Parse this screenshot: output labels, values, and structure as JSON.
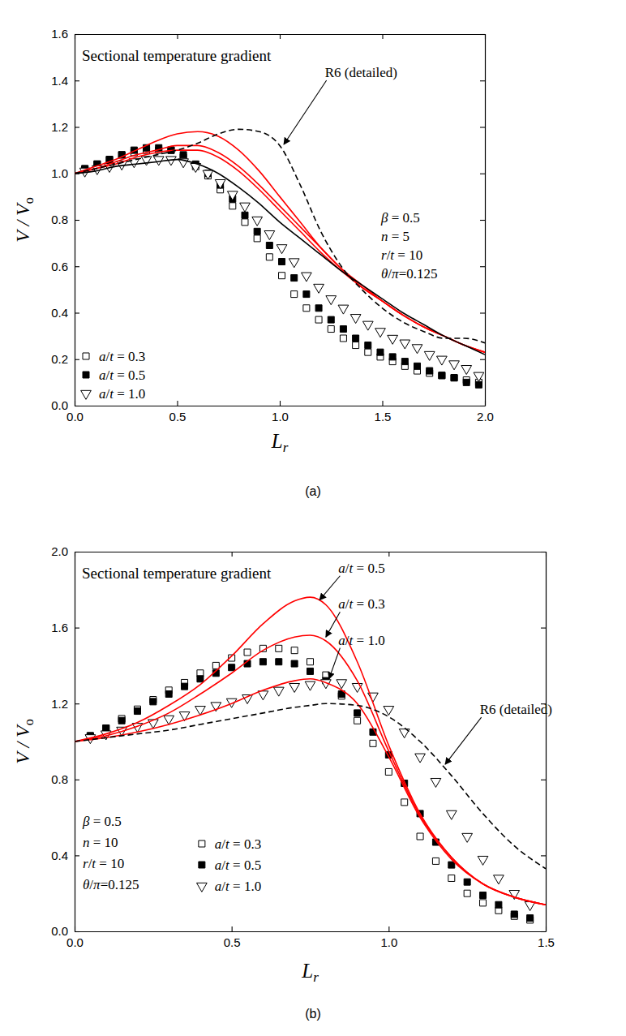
{
  "chart_data": [
    {
      "type": "line",
      "title": "Sectional temperature gradient",
      "xlabel": [
        "L",
        "r"
      ],
      "ylabel": [
        "V / V",
        "o"
      ],
      "caption": "(a)",
      "xlim": [
        0,
        2
      ],
      "ylim": [
        0,
        1.6
      ],
      "xticks": [
        {
          "value": 0,
          "label": "0.0"
        },
        0.5,
        {
          "value": 1,
          "label": "1.0"
        },
        1.5,
        {
          "value": 2,
          "label": "2.0"
        }
      ],
      "yticks": [
        {
          "value": 0,
          "label": "0.0"
        },
        0.2,
        0.4,
        0.6,
        0.8,
        {
          "value": 1,
          "label": "1.0"
        },
        1.2,
        1.4,
        1.6
      ],
      "legend": "lower left",
      "params": [
        "β = 0.5",
        "n = 5",
        "r/t = 10",
        "θ/π=0.125"
      ],
      "annotations": [
        {
          "text": "R6 (detailed)",
          "x": 1.22,
          "y": 1.415,
          "arrow_x": 1.02,
          "arrow_y": 1.125
        }
      ],
      "series": [
        {
          "name": "a/t = 0.3",
          "type": "scatter",
          "marker": "open-square",
          "color": "#000000",
          "x": [
            0.05,
            0.11,
            0.17,
            0.23,
            0.29,
            0.35,
            0.41,
            0.47,
            0.53,
            0.59,
            0.65,
            0.71,
            0.77,
            0.83,
            0.89,
            0.95,
            1.01,
            1.07,
            1.13,
            1.19,
            1.25,
            1.31,
            1.37,
            1.43,
            1.49,
            1.55,
            1.61,
            1.67,
            1.73,
            1.79,
            1.85,
            1.91,
            1.97
          ],
          "values": [
            1.02,
            1.04,
            1.06,
            1.08,
            1.09,
            1.1,
            1.1,
            1.1,
            1.07,
            1.03,
            0.99,
            0.93,
            0.86,
            0.79,
            0.72,
            0.64,
            0.56,
            0.48,
            0.42,
            0.37,
            0.33,
            0.29,
            0.26,
            0.23,
            0.21,
            0.19,
            0.17,
            0.15,
            0.14,
            0.13,
            0.12,
            0.11,
            0.1
          ]
        },
        {
          "name": "a/t = 0.5",
          "type": "scatter",
          "marker": "filled-square",
          "color": "#000000",
          "x": [
            0.05,
            0.11,
            0.17,
            0.23,
            0.29,
            0.35,
            0.41,
            0.47,
            0.53,
            0.59,
            0.65,
            0.71,
            0.77,
            0.83,
            0.89,
            0.95,
            1.01,
            1.07,
            1.13,
            1.19,
            1.25,
            1.31,
            1.37,
            1.43,
            1.49,
            1.55,
            1.61,
            1.67,
            1.73,
            1.79,
            1.85,
            1.91,
            1.97
          ],
          "values": [
            1.02,
            1.04,
            1.06,
            1.08,
            1.1,
            1.11,
            1.11,
            1.1,
            1.08,
            1.04,
            1.0,
            0.95,
            0.89,
            0.82,
            0.75,
            0.69,
            0.62,
            0.55,
            0.48,
            0.42,
            0.37,
            0.33,
            0.29,
            0.26,
            0.23,
            0.21,
            0.19,
            0.17,
            0.15,
            0.13,
            0.12,
            0.1,
            0.09
          ]
        },
        {
          "name": "a/t = 1.0",
          "type": "scatter",
          "marker": "open-triangle-down",
          "color": "#000000",
          "x": [
            0.05,
            0.11,
            0.17,
            0.23,
            0.29,
            0.35,
            0.41,
            0.47,
            0.53,
            0.59,
            0.65,
            0.71,
            0.77,
            0.83,
            0.89,
            0.95,
            1.01,
            1.07,
            1.13,
            1.19,
            1.25,
            1.31,
            1.37,
            1.43,
            1.49,
            1.55,
            1.61,
            1.67,
            1.73,
            1.79,
            1.85,
            1.91,
            1.97
          ],
          "values": [
            1.01,
            1.02,
            1.03,
            1.04,
            1.05,
            1.06,
            1.06,
            1.06,
            1.05,
            1.03,
            1.0,
            0.96,
            0.91,
            0.86,
            0.8,
            0.74,
            0.68,
            0.62,
            0.56,
            0.51,
            0.46,
            0.42,
            0.38,
            0.35,
            0.32,
            0.29,
            0.27,
            0.25,
            0.22,
            0.2,
            0.18,
            0.16,
            0.13
          ]
        },
        {
          "type": "line",
          "line_style": "solid",
          "color": "#ff0000",
          "x": [
            0,
            0.1,
            0.2,
            0.3,
            0.4,
            0.5,
            0.6,
            0.7,
            0.8,
            0.9,
            1.0,
            1.1,
            1.2,
            1.3,
            1.4,
            1.5,
            1.6,
            1.7,
            1.8,
            1.9,
            2.0
          ],
          "values": [
            1.0,
            1.03,
            1.06,
            1.1,
            1.14,
            1.17,
            1.18,
            1.16,
            1.1,
            1.01,
            0.9,
            0.79,
            0.68,
            0.59,
            0.51,
            0.45,
            0.39,
            0.34,
            0.3,
            0.26,
            0.23
          ]
        },
        {
          "type": "line",
          "line_style": "solid",
          "color": "#ff0000",
          "x": [
            0,
            0.1,
            0.2,
            0.3,
            0.4,
            0.5,
            0.6,
            0.7,
            0.8,
            0.9,
            1.0,
            1.1,
            1.2,
            1.3,
            1.4,
            1.5,
            1.6,
            1.7,
            1.8,
            1.9,
            2.0
          ],
          "values": [
            1.0,
            1.02,
            1.05,
            1.08,
            1.1,
            1.12,
            1.12,
            1.09,
            1.03,
            0.95,
            0.86,
            0.77,
            0.68,
            0.59,
            0.52,
            0.45,
            0.39,
            0.34,
            0.3,
            0.26,
            0.23
          ]
        },
        {
          "type": "line",
          "line_style": "solid",
          "color": "#ff0000",
          "x": [
            0,
            0.1,
            0.2,
            0.3,
            0.4,
            0.5,
            0.6,
            0.7,
            0.8,
            0.9,
            1.0,
            1.1,
            1.2,
            1.3,
            1.4,
            1.5,
            1.6,
            1.7,
            1.8,
            1.9,
            2.0
          ],
          "values": [
            1.0,
            1.02,
            1.04,
            1.07,
            1.09,
            1.1,
            1.1,
            1.07,
            1.01,
            0.93,
            0.84,
            0.75,
            0.66,
            0.58,
            0.51,
            0.45,
            0.39,
            0.34,
            0.3,
            0.26,
            0.23
          ]
        },
        {
          "type": "line",
          "line_style": "solid",
          "color": "#000000",
          "x": [
            0,
            0.1,
            0.2,
            0.3,
            0.4,
            0.5,
            0.6,
            0.7,
            0.8,
            0.9,
            1.0,
            1.1,
            1.2,
            1.3,
            1.4,
            1.5,
            1.6,
            1.7,
            1.8,
            1.9,
            2.0
          ],
          "values": [
            1.0,
            1.01,
            1.03,
            1.04,
            1.05,
            1.06,
            1.04,
            1.0,
            0.94,
            0.87,
            0.79,
            0.72,
            0.65,
            0.58,
            0.52,
            0.46,
            0.4,
            0.35,
            0.3,
            0.26,
            0.22
          ]
        },
        {
          "type": "line",
          "line_style": "dashed",
          "color": "#000000",
          "x": [
            0,
            0.1,
            0.2,
            0.3,
            0.4,
            0.5,
            0.6,
            0.7,
            0.8,
            0.9,
            1.0,
            1.1,
            1.2,
            1.3,
            1.4,
            1.5,
            1.6,
            1.7,
            1.8,
            1.9,
            2.0
          ],
          "values": [
            1.0,
            1.02,
            1.04,
            1.06,
            1.08,
            1.1,
            1.13,
            1.17,
            1.19,
            1.18,
            1.12,
            0.95,
            0.75,
            0.6,
            0.5,
            0.42,
            0.36,
            0.32,
            0.29,
            0.29,
            0.27
          ]
        }
      ]
    },
    {
      "type": "line",
      "title": "Sectional temperature gradient",
      "xlabel": [
        "L",
        "r"
      ],
      "ylabel": [
        "V / V",
        "o"
      ],
      "caption": "(b)",
      "xlim": [
        0,
        1.5
      ],
      "ylim": [
        0,
        2
      ],
      "xticks": [
        {
          "value": 0,
          "label": "0.0"
        },
        0.5,
        {
          "value": 1,
          "label": "1.0"
        },
        1.5
      ],
      "yticks": [
        {
          "value": 0,
          "label": "0.0"
        },
        0.4,
        0.8,
        1.2,
        1.6,
        {
          "value": 2,
          "label": "2.0"
        }
      ],
      "legend": "lower center",
      "params": [
        "β = 0.5",
        "n = 10",
        "r/t = 10",
        "θ/π=0.125"
      ],
      "annotations": [
        {
          "text": "a/t = 0.5",
          "x": 0.84,
          "y": 1.89,
          "arrow_x": 0.78,
          "arrow_y": 1.745
        },
        {
          "text": "a/t = 0.3",
          "x": 0.84,
          "y": 1.7,
          "arrow_x": 0.8,
          "arrow_y": 1.55
        },
        {
          "text": "a/t = 1.0",
          "x": 0.84,
          "y": 1.51,
          "arrow_x": 0.81,
          "arrow_y": 1.33
        },
        {
          "text": "R6 (detailed)",
          "x": 1.29,
          "y": 1.145,
          "arrow_x": 1.18,
          "arrow_y": 0.88
        }
      ],
      "series": [
        {
          "name": "a/t = 0.3",
          "type": "scatter",
          "marker": "open-square",
          "color": "#000000",
          "x": [
            0.05,
            0.1,
            0.15,
            0.2,
            0.25,
            0.3,
            0.35,
            0.4,
            0.45,
            0.5,
            0.55,
            0.6,
            0.65,
            0.7,
            0.75,
            0.8,
            0.85,
            0.9,
            0.95,
            1.0,
            1.05,
            1.1,
            1.15,
            1.2,
            1.25,
            1.3,
            1.35,
            1.4,
            1.45
          ],
          "values": [
            1.03,
            1.07,
            1.12,
            1.17,
            1.22,
            1.27,
            1.31,
            1.36,
            1.4,
            1.44,
            1.47,
            1.49,
            1.49,
            1.48,
            1.42,
            1.35,
            1.24,
            1.11,
            0.99,
            0.84,
            0.68,
            0.5,
            0.37,
            0.28,
            0.2,
            0.15,
            0.11,
            0.08,
            0.06
          ]
        },
        {
          "name": "a/t = 0.5",
          "type": "scatter",
          "marker": "filled-square",
          "color": "#000000",
          "x": [
            0.05,
            0.1,
            0.15,
            0.2,
            0.25,
            0.3,
            0.35,
            0.4,
            0.45,
            0.5,
            0.55,
            0.6,
            0.65,
            0.7,
            0.75,
            0.8,
            0.85,
            0.9,
            0.95,
            1.0,
            1.05,
            1.1,
            1.15,
            1.2,
            1.25,
            1.3,
            1.35,
            1.4,
            1.45
          ],
          "values": [
            1.03,
            1.07,
            1.11,
            1.16,
            1.21,
            1.25,
            1.29,
            1.33,
            1.36,
            1.39,
            1.41,
            1.42,
            1.42,
            1.41,
            1.37,
            1.32,
            1.25,
            1.15,
            1.05,
            0.93,
            0.78,
            0.62,
            0.47,
            0.35,
            0.26,
            0.19,
            0.14,
            0.09,
            0.07
          ]
        },
        {
          "name": "a/t = 1.0",
          "type": "scatter",
          "marker": "open-triangle-down",
          "color": "#000000",
          "x": [
            0.05,
            0.1,
            0.15,
            0.2,
            0.25,
            0.3,
            0.35,
            0.4,
            0.45,
            0.5,
            0.55,
            0.6,
            0.65,
            0.7,
            0.75,
            0.8,
            0.85,
            0.9,
            0.95,
            1.0,
            1.05,
            1.1,
            1.15,
            1.2,
            1.25,
            1.3,
            1.35,
            1.4,
            1.45
          ],
          "values": [
            1.02,
            1.04,
            1.06,
            1.08,
            1.1,
            1.12,
            1.14,
            1.17,
            1.19,
            1.21,
            1.23,
            1.25,
            1.27,
            1.29,
            1.3,
            1.31,
            1.31,
            1.29,
            1.24,
            1.17,
            1.05,
            0.92,
            0.79,
            0.62,
            0.5,
            0.38,
            0.28,
            0.2,
            0.14
          ]
        },
        {
          "type": "line",
          "line_style": "solid",
          "color": "#ff0000",
          "x": [
            0,
            0.1,
            0.2,
            0.3,
            0.4,
            0.5,
            0.6,
            0.7,
            0.75,
            0.8,
            0.9,
            1.0,
            1.1,
            1.2,
            1.3,
            1.4,
            1.5
          ],
          "values": [
            1.0,
            1.04,
            1.1,
            1.19,
            1.3,
            1.45,
            1.62,
            1.74,
            1.76,
            1.72,
            1.42,
            0.98,
            0.62,
            0.39,
            0.25,
            0.18,
            0.14
          ]
        },
        {
          "type": "line",
          "line_style": "solid",
          "color": "#ff0000",
          "x": [
            0,
            0.1,
            0.2,
            0.3,
            0.4,
            0.5,
            0.6,
            0.7,
            0.75,
            0.8,
            0.9,
            1.0,
            1.1,
            1.2,
            1.3,
            1.4,
            1.5
          ],
          "values": [
            1.0,
            1.03,
            1.08,
            1.15,
            1.25,
            1.36,
            1.48,
            1.55,
            1.56,
            1.53,
            1.32,
            0.95,
            0.61,
            0.39,
            0.25,
            0.18,
            0.14
          ]
        },
        {
          "type": "line",
          "line_style": "solid",
          "color": "#ff0000",
          "x": [
            0,
            0.1,
            0.2,
            0.3,
            0.4,
            0.5,
            0.6,
            0.7,
            0.75,
            0.8,
            0.9,
            1.0,
            1.1,
            1.2,
            1.3,
            1.4,
            1.5
          ],
          "values": [
            1.0,
            1.02,
            1.05,
            1.09,
            1.14,
            1.2,
            1.27,
            1.32,
            1.33,
            1.31,
            1.2,
            0.92,
            0.6,
            0.38,
            0.25,
            0.18,
            0.14
          ]
        },
        {
          "type": "line",
          "line_style": "dashed",
          "color": "#000000",
          "x": [
            0,
            0.1,
            0.2,
            0.3,
            0.4,
            0.5,
            0.6,
            0.7,
            0.75,
            0.8,
            0.9,
            1.0,
            1.1,
            1.2,
            1.3,
            1.4,
            1.5
          ],
          "values": [
            1.0,
            1.02,
            1.04,
            1.06,
            1.09,
            1.12,
            1.15,
            1.18,
            1.19,
            1.2,
            1.19,
            1.13,
            1.0,
            0.82,
            0.62,
            0.45,
            0.33
          ]
        }
      ]
    }
  ]
}
